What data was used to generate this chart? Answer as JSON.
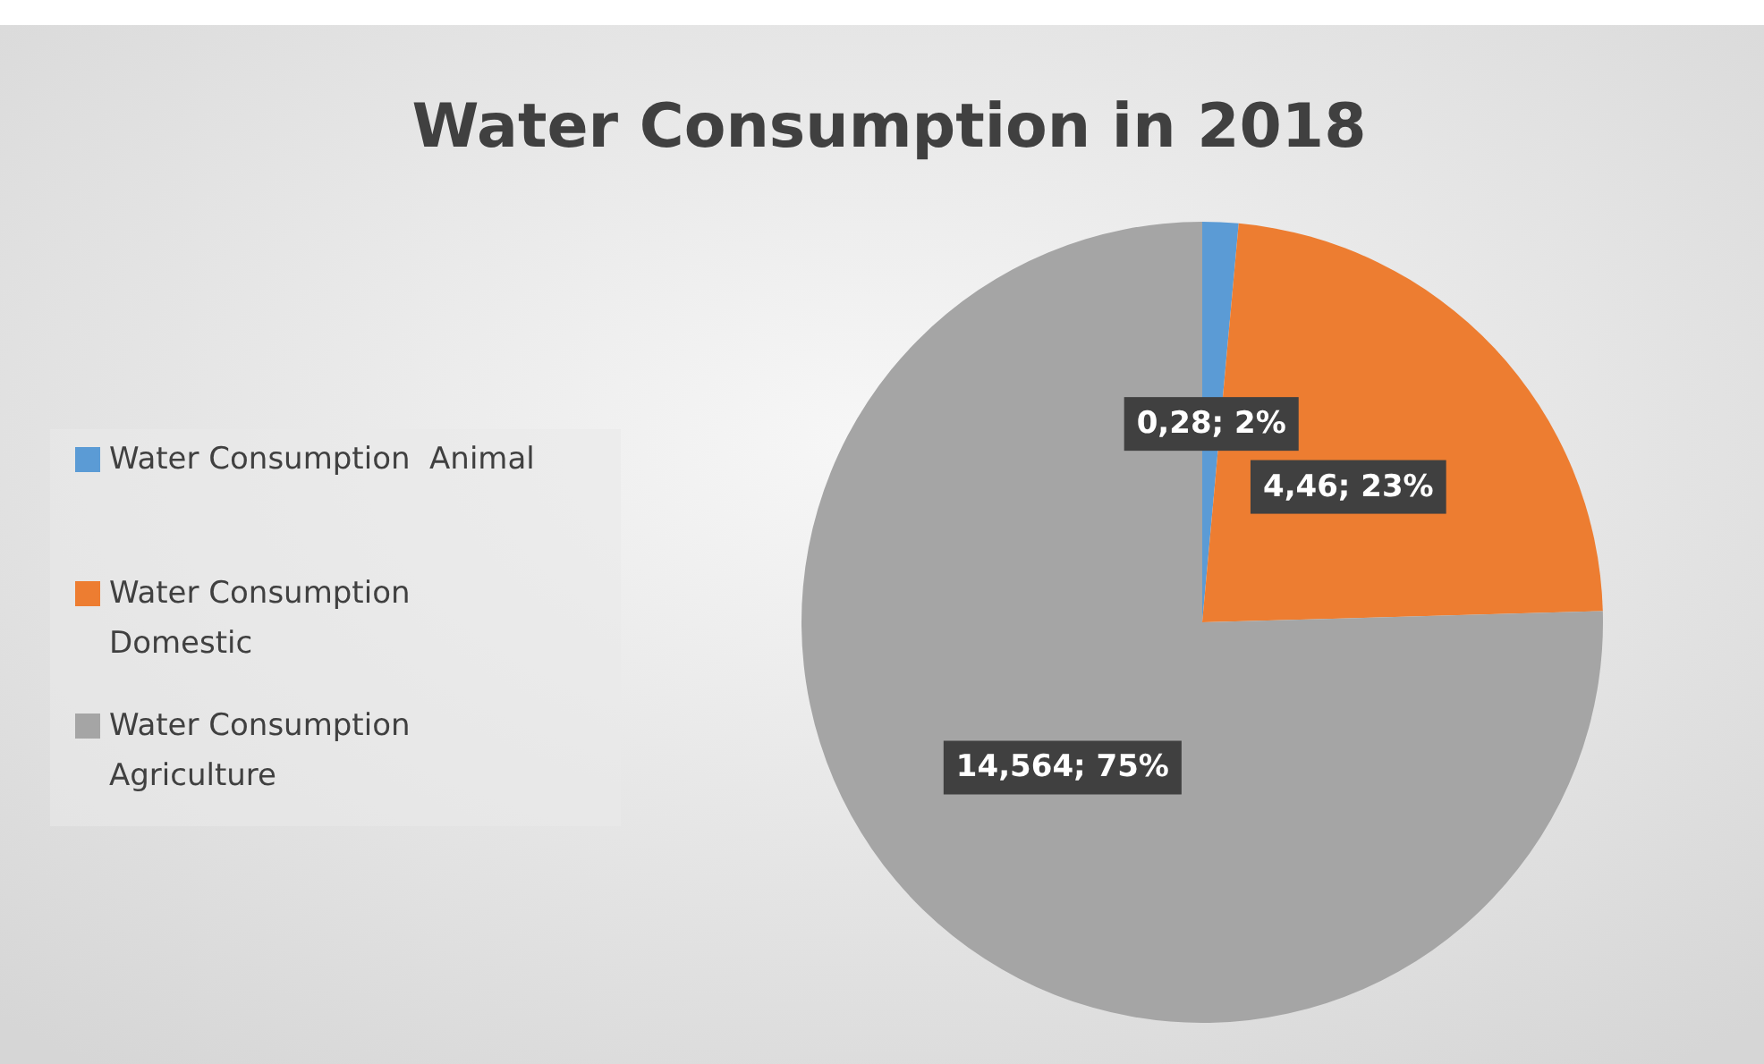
{
  "chart_data": {
    "type": "pie",
    "title": "Water Consumption in 2018",
    "categories": [
      "Water Consumption  Animal",
      "Water Consumption Domestic",
      "Water Consumption Agriculture"
    ],
    "values": [
      0.28,
      4.46,
      14.564
    ],
    "colors": [
      "#5b9bd5",
      "#ed7d31",
      "#a5a5a5"
    ],
    "value_labels": [
      "0,28; 2%",
      "4,46; 23%",
      "14,564; 75%"
    ],
    "legend": "left"
  }
}
